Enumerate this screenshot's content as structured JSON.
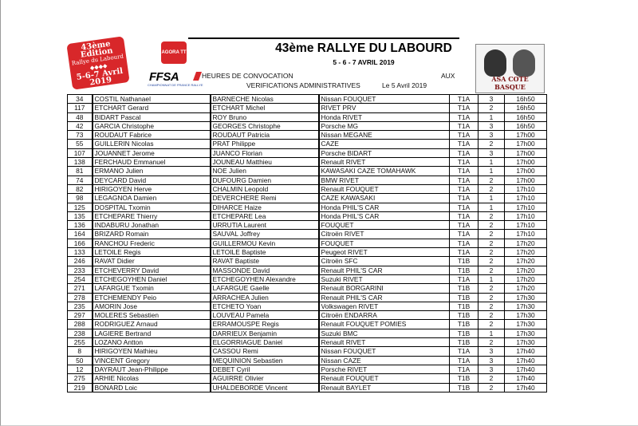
{
  "header": {
    "title": "43ème RALLYE DU LABOURD",
    "dates": "5 - 6 - 7 AVRIL 2019",
    "line1": "HEURES DE CONVOCATION",
    "line1_right": "AUX",
    "line2": "VERIFICATIONS ADMINISTRATIVES",
    "line2_date": "Le 5 Avril 2019"
  },
  "logos": {
    "left_badge": "43ème Edition Rallye du Labourd 5-6-7 Avril 2019",
    "agora": "AGORA TT",
    "ffsa": "FFSA",
    "ffsa_sub": "CHAMPIONNAT DE FRANCE RALLYE",
    "right": "ASA COTE BASQUE"
  },
  "rows": [
    [
      "34",
      "COSTIL Nathanael",
      "BARNECHE Nicolas",
      "Nissan FOUQUET",
      "T1A",
      "3",
      "16h50"
    ],
    [
      "117",
      "ETCHART Gerard",
      "ETCHART Michel",
      "RIVET   PRV",
      "T1A",
      "2",
      "16h50"
    ],
    [
      "48",
      "BIDART Pascal",
      "ROY Bruno",
      "Honda RIVET",
      "T1A",
      "1",
      "16h50"
    ],
    [
      "42",
      "GARCIA Christophe",
      "GEORGES Christophe",
      "Porsche MG",
      "T1A",
      "3",
      "16h50"
    ],
    [
      "73",
      "ROUDAUT Fabrice",
      "ROUDAUT Patricia",
      "Nissan MEGANE",
      "T1A",
      "3",
      "17h00"
    ],
    [
      "55",
      "GUILLERIN Nicolas",
      "PRAT Philippe",
      "CAZE",
      "T1A",
      "2",
      "17h00"
    ],
    [
      "107",
      "JOUANNET Jerome",
      "JUANCO Florian",
      "Porsche BIDART",
      "T1A",
      "3",
      "17h00"
    ],
    [
      "138",
      "FERCHAUD Emmanuel",
      "JOUNEAU Matthieu",
      "Renault RIVET",
      "T1A",
      "1",
      "17h00"
    ],
    [
      "81",
      "ERMANO Julien",
      "NOE Julien",
      "KAWASAKI CAZE TOMAHAWK",
      "T1A",
      "1",
      "17h00"
    ],
    [
      "74",
      "DEYCARD David",
      "DUFOURG Damien",
      "BMW RIVET",
      "T1A",
      "2",
      "17h00"
    ],
    [
      "82",
      "HIRIGOYEN Herve",
      "CHALMIN Leopold",
      "Renault FOUQUET",
      "T1A",
      "2",
      "17h10"
    ],
    [
      "98",
      "LEGAGNOA Damien",
      "DEVERCHERE Remi",
      "CAZE KAWASAKI",
      "T1A",
      "1",
      "17h10"
    ],
    [
      "125",
      "DOSPITAL Txomin",
      "DIHARCE Haize",
      "Honda PHIL'S CAR",
      "T1A",
      "1",
      "17h10"
    ],
    [
      "135",
      "ETCHEPARE Thierry",
      "ETCHEPARE Lea",
      "Honda PHIL'S CAR",
      "T1A",
      "2",
      "17h10"
    ],
    [
      "136",
      "INDABURU Jonathan",
      "URRUTIA Laurent",
      "FOUQUET",
      "T1A",
      "2",
      "17h10"
    ],
    [
      "164",
      "BRIZARD Romain",
      "SAUVAL Joffrey",
      "Citroën RIVET",
      "T1A",
      "2",
      "17h10"
    ],
    [
      "166",
      "RANCHOU Frederic",
      "GUILLERMOU Kevin",
      "FOUQUET",
      "T1A",
      "2",
      "17h20"
    ],
    [
      "133",
      "LETOILE Regis",
      "LETOILE Baptiste",
      "Peugeot RIVET",
      "T1A",
      "2",
      "17h20"
    ],
    [
      "246",
      "RAVAT Didier",
      "RAVAT Baptiste",
      "Citroën SFC",
      "T1B",
      "2",
      "17h20"
    ],
    [
      "233",
      "ETCHEVERRY David",
      "MASSONDE David",
      "Renault PHIL'S CAR",
      "T1B",
      "2",
      "17h20"
    ],
    [
      "254",
      "ETCHEGOYHEN Daniel",
      "ETCHEGOYHEN Alexandre",
      "Suzuki RIVET",
      "T1A",
      "1",
      "17h20"
    ],
    [
      "271",
      "LAFARGUE Txomin",
      "LAFARGUE Gaelle",
      "Renault BORGARINI",
      "T1B",
      "2",
      "17h20"
    ],
    [
      "278",
      "ETCHEMENDY Peio",
      "ARRACHEA Julien",
      "Renault PHIL'S CAR",
      "T1B",
      "2",
      "17h30"
    ],
    [
      "235",
      "AMORIN Jose",
      "ETCHETO Yoan",
      "Volkswagen RIVET",
      "T1B",
      "2",
      "17h30"
    ],
    [
      "297",
      "MOLERES Sebastien",
      "LOUVEAU Pamela",
      "Citroën ENDARRA",
      "T1B",
      "2",
      "17h30"
    ],
    [
      "288",
      "RODRIGUEZ Arnaud",
      "ERRAMOUSPE Regis",
      "Renault FOUQUET POMIES",
      "T1B",
      "2",
      "17h30"
    ],
    [
      "238",
      "LAGIERE Bertrand",
      "DARRIEUX Benjamin",
      "Suzuki BMC",
      "T1B",
      "1",
      "17h30"
    ],
    [
      "255",
      "LOZANO Antton",
      "ELGORRIAGUE Daniel",
      "Renault RIVET",
      "T1B",
      "2",
      "17h30"
    ],
    [
      "8",
      "HIRIGOYEN Mathieu",
      "CASSOU Remi",
      "Nissan FOUQUET",
      "T1A",
      "3",
      "17h40"
    ],
    [
      "50",
      "VINCENT Gregory",
      "MEQUINION Sebastien",
      "Nissan CAZE",
      "T1A",
      "3",
      "17h40"
    ],
    [
      "12",
      "DAYRAUT Jean-Philippe",
      "DEBET Cyril",
      "Porsche RIVET",
      "T1A",
      "3",
      "17h40"
    ],
    [
      "275",
      "ARHIE Nicolas",
      "AGUIRRE Olivier",
      "Renault FOUQUET",
      "T1B",
      "2",
      "17h40"
    ],
    [
      "219",
      "BONARD Loic",
      "UHALDEBORDE Vincent",
      "Renault BAYLET",
      "T1B",
      "2",
      "17h40"
    ]
  ]
}
